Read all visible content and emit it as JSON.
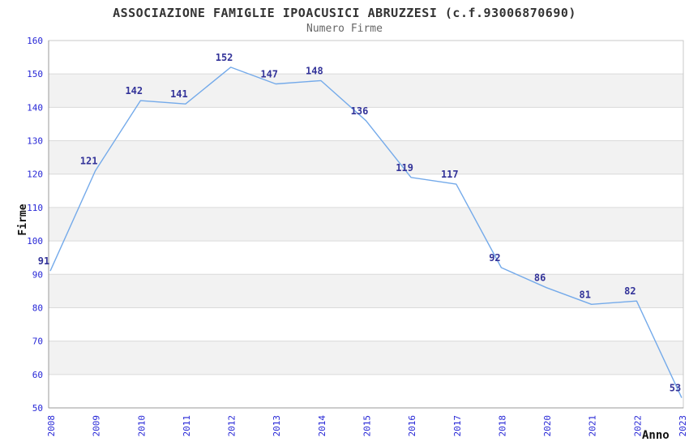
{
  "header": {
    "title": "ASSOCIAZIONE FAMIGLIE IPOACUSICI ABRUZZESI (c.f.93006870690)",
    "subtitle": "Numero Firme"
  },
  "chart_data": {
    "type": "line",
    "title": "ASSOCIAZIONE FAMIGLIE IPOACUSICI ABRUZZESI (c.f.93006870690)",
    "subtitle": "Numero Firme",
    "series_name": "Numero Firme",
    "categories": [
      "2008",
      "2009",
      "2010",
      "2011",
      "2012",
      "2013",
      "2014",
      "2015",
      "2016",
      "2017",
      "2018",
      "2020",
      "2021",
      "2022",
      "2023"
    ],
    "values": [
      91,
      121,
      142,
      141,
      152,
      147,
      148,
      136,
      119,
      117,
      92,
      86,
      81,
      82,
      53
    ],
    "xlabel": "Anno",
    "ylabel": "Firme",
    "ylim": [
      50,
      160
    ],
    "ytick_step": 10,
    "yticks": [
      50,
      60,
      70,
      80,
      90,
      100,
      110,
      120,
      130,
      140,
      150,
      160
    ],
    "grid": true,
    "legend": false,
    "alternating_bands": true,
    "data_labels_shown": true
  },
  "colors": {
    "background": "#ffffff",
    "line": "#74aaea",
    "band": "#f2f2f2",
    "grid": "#dadada",
    "plot_border": "#c8c8c8",
    "axis": "#999999",
    "tick_label": "#2626d6",
    "data_label": "#333399",
    "title": "#333333",
    "subtitle": "#666666",
    "axis_title": "#111111"
  }
}
